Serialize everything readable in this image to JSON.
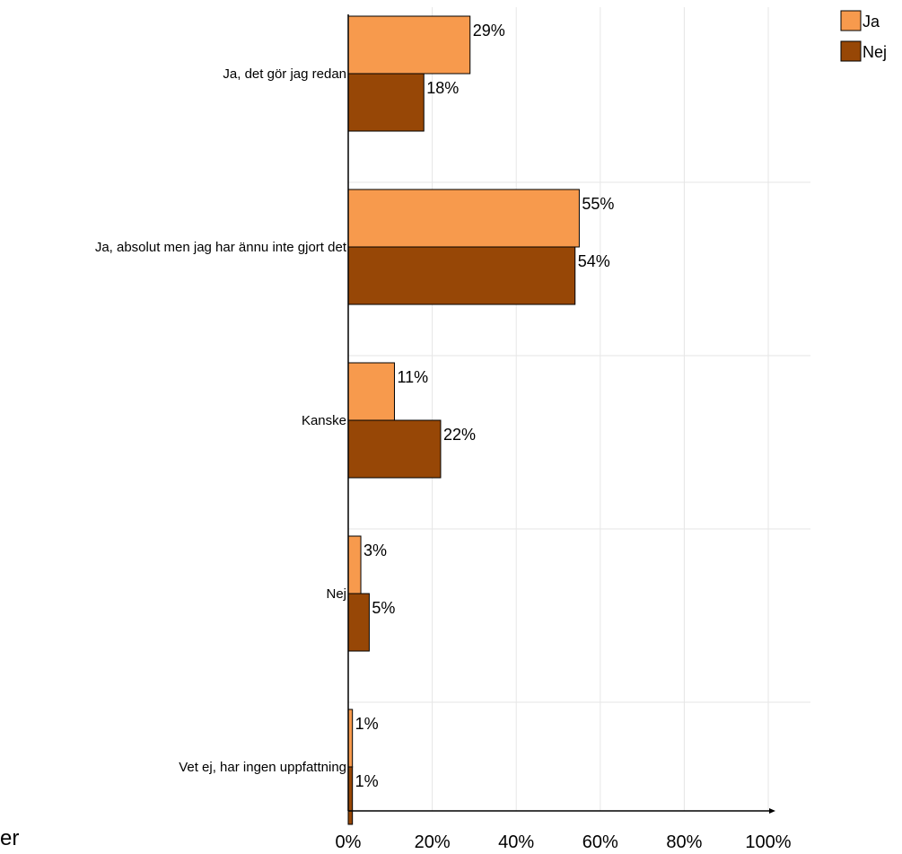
{
  "chart_data": {
    "type": "bar",
    "orientation": "horizontal",
    "categories": [
      "Ja, det gör jag redan",
      "Ja, absolut men jag har ännu inte gjort det",
      "Kanske",
      "Nej",
      "Vet ej, har ingen uppfattning"
    ],
    "series": [
      {
        "name": "Ja",
        "values": [
          29,
          55,
          11,
          3,
          1
        ],
        "color": "#F79A4D"
      },
      {
        "name": "Nej",
        "values": [
          18,
          54,
          22,
          5,
          1
        ],
        "color": "#974706"
      }
    ],
    "value_labels": [
      [
        "29%",
        "55%",
        "11%",
        "3%",
        "1%"
      ],
      [
        "18%",
        "54%",
        "22%",
        "5%",
        "1%"
      ]
    ],
    "x_ticks": [
      "0%",
      "20%",
      "40%",
      "60%",
      "80%",
      "100%"
    ],
    "xlim": [
      0,
      100
    ],
    "grid": true,
    "legend_position": "top-right"
  },
  "corner_text": "er"
}
